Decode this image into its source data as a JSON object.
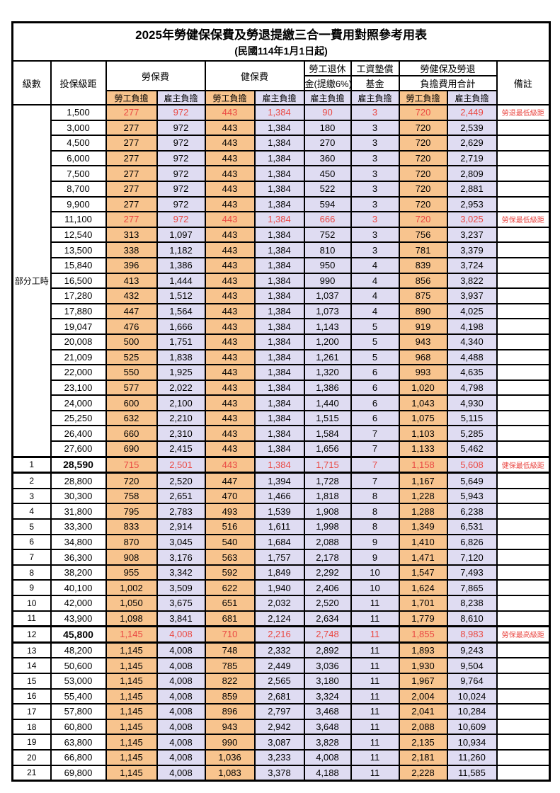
{
  "title": "2025年勞健保保費及勞退提繳三合一費用對照參考用表",
  "subtitle": "(民國114年1月1日起)",
  "colors": {
    "employee_bg": "#F8C48E",
    "employer_bg": "#DFDCF2",
    "highlight_red": "#EA4843"
  },
  "header": {
    "level": "級數",
    "bracket": "投保級距",
    "labor_ins": "勞保費",
    "health_ins": "健保費",
    "pension_line1": "勞工退休",
    "pension_line2": "金(提繳6%)",
    "wage_fund_line1": "工資墊償",
    "wage_fund_line2": "基金",
    "total_line1": "勞健保及勞退",
    "total_line2": "負擔費用合計",
    "remark": "備註",
    "employee": "勞工負擔",
    "employer": "雇主負擔"
  },
  "part_time_label": "部分工時",
  "part_time_row_count": 23,
  "rows": [
    {
      "level": "",
      "bracket": "1,500",
      "values": [
        "277",
        "972",
        "443",
        "1,384",
        "90",
        "3",
        "720",
        "2,449"
      ],
      "remark": "勞退最低級距",
      "red": true
    },
    {
      "level": "",
      "bracket": "3,000",
      "values": [
        "277",
        "972",
        "443",
        "1,384",
        "180",
        "3",
        "720",
        "2,539"
      ],
      "remark": ""
    },
    {
      "level": "",
      "bracket": "4,500",
      "values": [
        "277",
        "972",
        "443",
        "1,384",
        "270",
        "3",
        "720",
        "2,629"
      ],
      "remark": ""
    },
    {
      "level": "",
      "bracket": "6,000",
      "values": [
        "277",
        "972",
        "443",
        "1,384",
        "360",
        "3",
        "720",
        "2,719"
      ],
      "remark": ""
    },
    {
      "level": "",
      "bracket": "7,500",
      "values": [
        "277",
        "972",
        "443",
        "1,384",
        "450",
        "3",
        "720",
        "2,809"
      ],
      "remark": ""
    },
    {
      "level": "",
      "bracket": "8,700",
      "values": [
        "277",
        "972",
        "443",
        "1,384",
        "522",
        "3",
        "720",
        "2,881"
      ],
      "remark": ""
    },
    {
      "level": "",
      "bracket": "9,900",
      "values": [
        "277",
        "972",
        "443",
        "1,384",
        "594",
        "3",
        "720",
        "2,953"
      ],
      "remark": ""
    },
    {
      "level": "",
      "bracket": "11,100",
      "values": [
        "277",
        "972",
        "443",
        "1,384",
        "666",
        "3",
        "720",
        "3,025"
      ],
      "remark": "勞保最低級距",
      "red": true
    },
    {
      "level": "",
      "bracket": "12,540",
      "values": [
        "313",
        "1,097",
        "443",
        "1,384",
        "752",
        "3",
        "756",
        "3,237"
      ],
      "remark": ""
    },
    {
      "level": "",
      "bracket": "13,500",
      "values": [
        "338",
        "1,182",
        "443",
        "1,384",
        "810",
        "3",
        "781",
        "3,379"
      ],
      "remark": ""
    },
    {
      "level": "",
      "bracket": "15,840",
      "values": [
        "396",
        "1,386",
        "443",
        "1,384",
        "950",
        "4",
        "839",
        "3,724"
      ],
      "remark": ""
    },
    {
      "level": "",
      "bracket": "16,500",
      "values": [
        "413",
        "1,444",
        "443",
        "1,384",
        "990",
        "4",
        "856",
        "3,822"
      ],
      "remark": ""
    },
    {
      "level": "",
      "bracket": "17,280",
      "values": [
        "432",
        "1,512",
        "443",
        "1,384",
        "1,037",
        "4",
        "875",
        "3,937"
      ],
      "remark": ""
    },
    {
      "level": "",
      "bracket": "17,880",
      "values": [
        "447",
        "1,564",
        "443",
        "1,384",
        "1,073",
        "4",
        "890",
        "4,025"
      ],
      "remark": ""
    },
    {
      "level": "",
      "bracket": "19,047",
      "values": [
        "476",
        "1,666",
        "443",
        "1,384",
        "1,143",
        "5",
        "919",
        "4,198"
      ],
      "remark": ""
    },
    {
      "level": "",
      "bracket": "20,008",
      "values": [
        "500",
        "1,751",
        "443",
        "1,384",
        "1,200",
        "5",
        "943",
        "4,340"
      ],
      "remark": ""
    },
    {
      "level": "",
      "bracket": "21,009",
      "values": [
        "525",
        "1,838",
        "443",
        "1,384",
        "1,261",
        "5",
        "968",
        "4,488"
      ],
      "remark": ""
    },
    {
      "level": "",
      "bracket": "22,000",
      "values": [
        "550",
        "1,925",
        "443",
        "1,384",
        "1,320",
        "6",
        "993",
        "4,635"
      ],
      "remark": ""
    },
    {
      "level": "",
      "bracket": "23,100",
      "values": [
        "577",
        "2,022",
        "443",
        "1,384",
        "1,386",
        "6",
        "1,020",
        "4,798"
      ],
      "remark": ""
    },
    {
      "level": "",
      "bracket": "24,000",
      "values": [
        "600",
        "2,100",
        "443",
        "1,384",
        "1,440",
        "6",
        "1,043",
        "4,930"
      ],
      "remark": ""
    },
    {
      "level": "",
      "bracket": "25,250",
      "values": [
        "632",
        "2,210",
        "443",
        "1,384",
        "1,515",
        "6",
        "1,075",
        "5,115"
      ],
      "remark": ""
    },
    {
      "level": "",
      "bracket": "26,400",
      "values": [
        "660",
        "2,310",
        "443",
        "1,384",
        "1,584",
        "7",
        "1,103",
        "5,285"
      ],
      "remark": ""
    },
    {
      "level": "",
      "bracket": "27,600",
      "values": [
        "690",
        "2,415",
        "443",
        "1,384",
        "1,656",
        "7",
        "1,133",
        "5,462"
      ],
      "remark": ""
    },
    {
      "level": "1",
      "bracket": "28,590",
      "values": [
        "715",
        "2,501",
        "443",
        "1,384",
        "1,715",
        "7",
        "1,158",
        "5,608"
      ],
      "remark": "健保最低級距",
      "red": true,
      "key": true
    },
    {
      "level": "2",
      "bracket": "28,800",
      "values": [
        "720",
        "2,520",
        "447",
        "1,394",
        "1,728",
        "7",
        "1,167",
        "5,649"
      ],
      "remark": ""
    },
    {
      "level": "3",
      "bracket": "30,300",
      "values": [
        "758",
        "2,651",
        "470",
        "1,466",
        "1,818",
        "8",
        "1,228",
        "5,943"
      ],
      "remark": ""
    },
    {
      "level": "4",
      "bracket": "31,800",
      "values": [
        "795",
        "2,783",
        "493",
        "1,539",
        "1,908",
        "8",
        "1,288",
        "6,238"
      ],
      "remark": ""
    },
    {
      "level": "5",
      "bracket": "33,300",
      "values": [
        "833",
        "2,914",
        "516",
        "1,611",
        "1,998",
        "8",
        "1,349",
        "6,531"
      ],
      "remark": ""
    },
    {
      "level": "6",
      "bracket": "34,800",
      "values": [
        "870",
        "3,045",
        "540",
        "1,684",
        "2,088",
        "9",
        "1,410",
        "6,826"
      ],
      "remark": ""
    },
    {
      "level": "7",
      "bracket": "36,300",
      "values": [
        "908",
        "3,176",
        "563",
        "1,757",
        "2,178",
        "9",
        "1,471",
        "7,120"
      ],
      "remark": ""
    },
    {
      "level": "8",
      "bracket": "38,200",
      "values": [
        "955",
        "3,342",
        "592",
        "1,849",
        "2,292",
        "10",
        "1,547",
        "7,493"
      ],
      "remark": ""
    },
    {
      "level": "9",
      "bracket": "40,100",
      "values": [
        "1,002",
        "3,509",
        "622",
        "1,940",
        "2,406",
        "10",
        "1,624",
        "7,865"
      ],
      "remark": ""
    },
    {
      "level": "10",
      "bracket": "42,000",
      "values": [
        "1,050",
        "3,675",
        "651",
        "2,032",
        "2,520",
        "11",
        "1,701",
        "8,238"
      ],
      "remark": ""
    },
    {
      "level": "11",
      "bracket": "43,900",
      "values": [
        "1,098",
        "3,841",
        "681",
        "2,124",
        "2,634",
        "11",
        "1,779",
        "8,610"
      ],
      "remark": ""
    },
    {
      "level": "12",
      "bracket": "45,800",
      "values": [
        "1,145",
        "4,008",
        "710",
        "2,216",
        "2,748",
        "11",
        "1,855",
        "8,983"
      ],
      "remark": "勞保最高級距",
      "red": true,
      "key": true
    },
    {
      "level": "13",
      "bracket": "48,200",
      "values": [
        "1,145",
        "4,008",
        "748",
        "2,332",
        "2,892",
        "11",
        "1,893",
        "9,243"
      ],
      "remark": ""
    },
    {
      "level": "14",
      "bracket": "50,600",
      "values": [
        "1,145",
        "4,008",
        "785",
        "2,449",
        "3,036",
        "11",
        "1,930",
        "9,504"
      ],
      "remark": ""
    },
    {
      "level": "15",
      "bracket": "53,000",
      "values": [
        "1,145",
        "4,008",
        "822",
        "2,565",
        "3,180",
        "11",
        "1,967",
        "9,764"
      ],
      "remark": ""
    },
    {
      "level": "16",
      "bracket": "55,400",
      "values": [
        "1,145",
        "4,008",
        "859",
        "2,681",
        "3,324",
        "11",
        "2,004",
        "10,024"
      ],
      "remark": ""
    },
    {
      "level": "17",
      "bracket": "57,800",
      "values": [
        "1,145",
        "4,008",
        "896",
        "2,797",
        "3,468",
        "11",
        "2,041",
        "10,284"
      ],
      "remark": ""
    },
    {
      "level": "18",
      "bracket": "60,800",
      "values": [
        "1,145",
        "4,008",
        "943",
        "2,942",
        "3,648",
        "11",
        "2,088",
        "10,609"
      ],
      "remark": ""
    },
    {
      "level": "19",
      "bracket": "63,800",
      "values": [
        "1,145",
        "4,008",
        "990",
        "3,087",
        "3,828",
        "11",
        "2,135",
        "10,934"
      ],
      "remark": ""
    },
    {
      "level": "20",
      "bracket": "66,800",
      "values": [
        "1,145",
        "4,008",
        "1,036",
        "3,233",
        "4,008",
        "11",
        "2,181",
        "11,260"
      ],
      "remark": ""
    },
    {
      "level": "21",
      "bracket": "69,800",
      "values": [
        "1,145",
        "4,008",
        "1,083",
        "3,378",
        "4,188",
        "11",
        "2,228",
        "11,585"
      ],
      "remark": ""
    }
  ]
}
